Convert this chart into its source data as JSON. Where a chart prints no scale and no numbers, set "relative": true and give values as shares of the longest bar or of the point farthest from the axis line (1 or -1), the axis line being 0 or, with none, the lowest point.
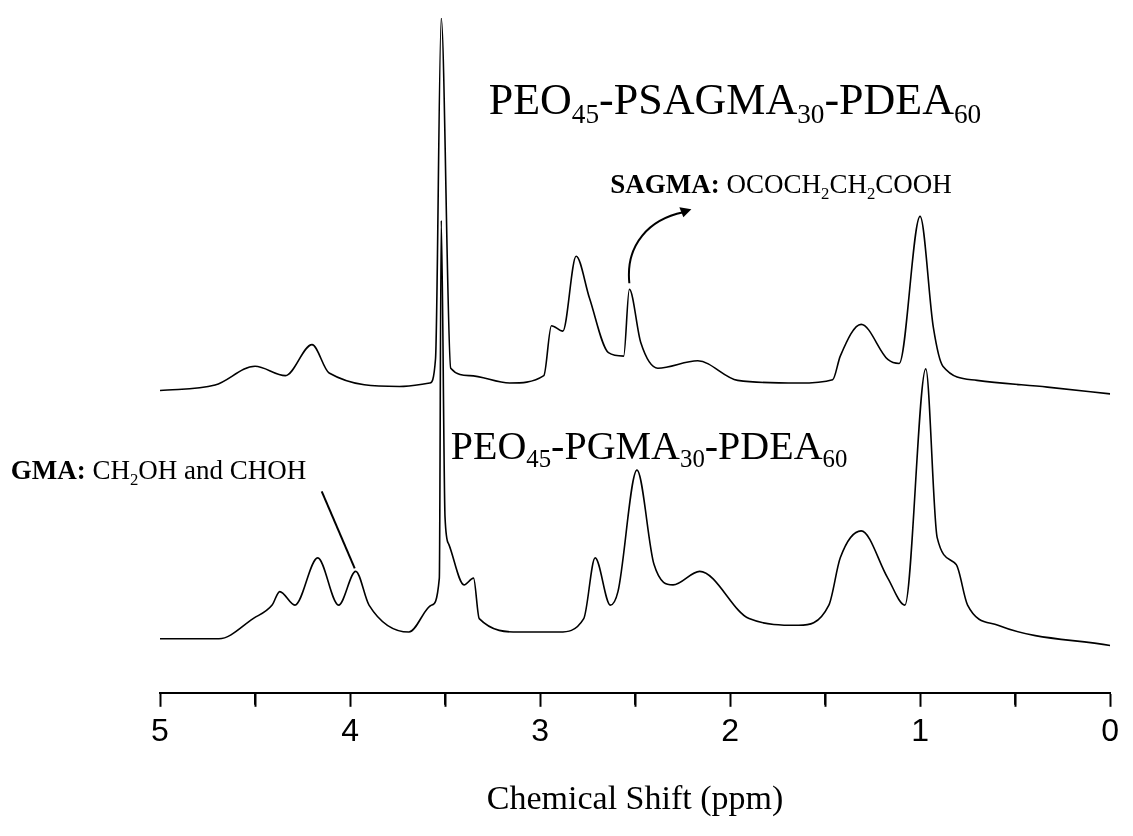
{
  "chart_data": {
    "type": "line",
    "relative": true,
    "xlabel": "Chemical Shift (ppm)",
    "xlim": [
      5,
      0
    ],
    "xticks": [
      5,
      {
        "value": 4.5,
        "label": null
      },
      4,
      {
        "value": 3.5,
        "label": null
      },
      3,
      {
        "value": 2.5,
        "label": null
      },
      2,
      {
        "value": 1.5,
        "label": null
      },
      1,
      {
        "value": 0.5,
        "label": null
      },
      0
    ],
    "series": [
      {
        "name": "PEO$_{45}$-PSAGMA$_{30}$-PDEA$_{60}$",
        "color": "#000000",
        "x": [
          5.0,
          4.71,
          4.5,
          4.34,
          4.2,
          4.11,
          3.74,
          3.58,
          3.55,
          3.52,
          3.47,
          3.37,
          3.16,
          2.98,
          2.94,
          2.88,
          2.81,
          2.74,
          2.64,
          2.56,
          2.53,
          2.47,
          2.38,
          2.17,
          1.96,
          1.64,
          1.46,
          1.42,
          1.31,
          1.17,
          1.11,
          1.0,
          0.93,
          0.88,
          0.7,
          0.33,
          0
        ],
        "values": [
          0.448,
          0.456,
          0.484,
          0.47,
          0.516,
          0.474,
          0.454,
          0.459,
          0.495,
          1.0,
          0.481,
          0.47,
          0.459,
          0.47,
          0.544,
          0.536,
          0.647,
          0.585,
          0.504,
          0.499,
          0.598,
          0.519,
          0.481,
          0.492,
          0.463,
          0.459,
          0.464,
          0.499,
          0.546,
          0.494,
          0.488,
          0.706,
          0.541,
          0.484,
          0.463,
          0.453,
          0.443
        ]
      },
      {
        "name": "PEO$_{45}$-PGMA$_{30}$-PDEA$_{60}$",
        "color": "#000000",
        "x": [
          5.0,
          4.69,
          4.51,
          4.41,
          4.37,
          4.29,
          4.17,
          4.06,
          3.97,
          3.9,
          3.69,
          3.57,
          3.53,
          3.52,
          3.5,
          3.48,
          3.4,
          3.35,
          3.32,
          3.11,
          2.9,
          2.77,
          2.71,
          2.63,
          2.59,
          2.49,
          2.4,
          2.3,
          2.16,
          1.9,
          1.64,
          1.48,
          1.42,
          1.31,
          1.17,
          1.08,
          0.97,
          0.91,
          0.81,
          0.75,
          0.59,
          0
        ],
        "values": [
          0.08,
          0.08,
          0.11,
          0.13,
          0.15,
          0.13,
          0.2,
          0.13,
          0.18,
          0.13,
          0.09,
          0.13,
          0.17,
          0.7,
          0.26,
          0.22,
          0.16,
          0.17,
          0.11,
          0.09,
          0.09,
          0.11,
          0.2,
          0.13,
          0.15,
          0.33,
          0.19,
          0.16,
          0.18,
          0.11,
          0.1,
          0.13,
          0.2,
          0.24,
          0.17,
          0.13,
          0.48,
          0.23,
          0.19,
          0.13,
          0.1,
          0.07
        ]
      }
    ],
    "annotations": [
      {
        "text": "SAGMA: OCOCH$_{2}$CH$_{2}$COOH",
        "x": 2.53,
        "y": 0.598
      },
      {
        "text": "GMA: CH$_{2}$OH and CHOH",
        "x": 3.97,
        "y": 0.18
      }
    ]
  }
}
